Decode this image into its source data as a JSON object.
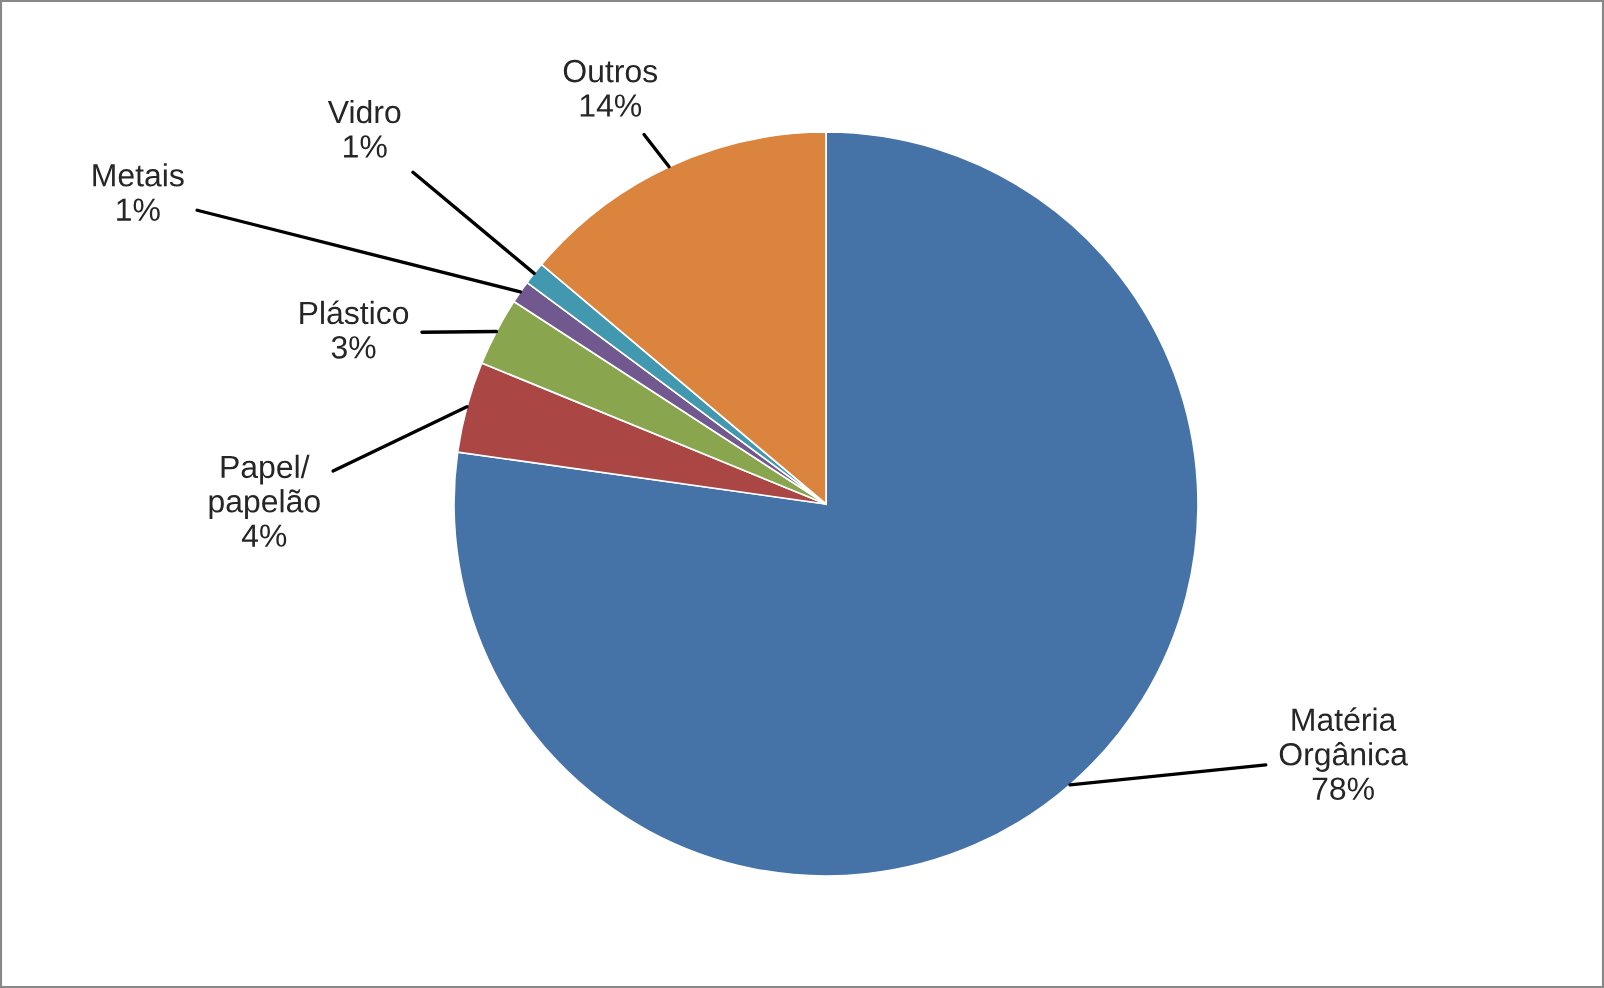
{
  "chart_data": {
    "type": "pie",
    "categories": [
      "Matéria\nOrgânica",
      "Papel/\npapelão",
      "Plástico",
      "Metais",
      "Vidro",
      "Outros"
    ],
    "values": [
      78,
      4,
      3,
      1,
      1,
      14
    ],
    "colors": [
      "#4572a7",
      "#aa4643",
      "#89a54e",
      "#71588f",
      "#4198af",
      "#db843d"
    ],
    "value_labels": [
      "78%",
      "4%",
      "3%",
      "1%",
      "1%",
      "14%"
    ],
    "legend": false
  }
}
